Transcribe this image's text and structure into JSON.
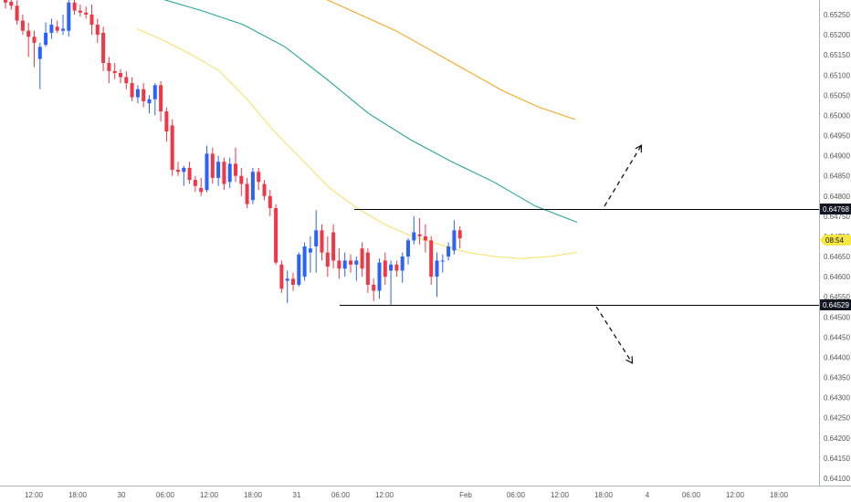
{
  "chart_data": {
    "type": "candlestick",
    "title": "",
    "xlabel": "",
    "ylabel": "",
    "x_ticks": [
      "12:00",
      "18:00",
      "30",
      "06:00",
      "12:00",
      "18:00",
      "31",
      "06:00",
      "12:00",
      "Feb",
      "06:00",
      "12:00",
      "18:00",
      "4",
      "06:00",
      "12:00",
      "18:00"
    ],
    "y_ticks": [
      "0.65250",
      "0.65200",
      "0.65150",
      "0.65100",
      "0.65050",
      "0.65000",
      "0.64950",
      "0.64900",
      "0.64850",
      "0.64800",
      "0.64750",
      "0.64700",
      "0.64650",
      "0.64600",
      "0.64550",
      "0.64500",
      "0.64450",
      "0.64400",
      "0.64350",
      "0.64300",
      "0.64250",
      "0.64200",
      "0.64150",
      "0.64100"
    ],
    "ylim": [
      0.6408,
      0.6529
    ],
    "grid": false,
    "colors": {
      "up": "#2962ff",
      "down": "#f23645",
      "ma_fast": "#f5e26b",
      "ma_mid": "#26a69a",
      "ma_slow": "#f5a623",
      "level": "#000000",
      "price_badge": "#f7e742"
    },
    "candles": [
      {
        "o": 0.6529,
        "h": 0.65305,
        "l": 0.65265,
        "c": 0.6528
      },
      {
        "o": 0.65282,
        "h": 0.653,
        "l": 0.65262,
        "c": 0.65272
      },
      {
        "o": 0.65272,
        "h": 0.65285,
        "l": 0.65225,
        "c": 0.65235
      },
      {
        "o": 0.65235,
        "h": 0.6525,
        "l": 0.652,
        "c": 0.6521
      },
      {
        "o": 0.6521,
        "h": 0.6523,
        "l": 0.65145,
        "c": 0.65195
      },
      {
        "o": 0.65195,
        "h": 0.6521,
        "l": 0.6512,
        "c": 0.6518
      },
      {
        "o": 0.6514,
        "h": 0.6518,
        "l": 0.65065,
        "c": 0.6517
      },
      {
        "o": 0.65175,
        "h": 0.6523,
        "l": 0.6517,
        "c": 0.65205
      },
      {
        "o": 0.65205,
        "h": 0.6524,
        "l": 0.6519,
        "c": 0.65225
      },
      {
        "o": 0.6522,
        "h": 0.65235,
        "l": 0.65205,
        "c": 0.6521
      },
      {
        "o": 0.6521,
        "h": 0.6525,
        "l": 0.652,
        "c": 0.65215
      },
      {
        "o": 0.6521,
        "h": 0.653,
        "l": 0.65195,
        "c": 0.6528
      },
      {
        "o": 0.6528,
        "h": 0.65305,
        "l": 0.6525,
        "c": 0.6526
      },
      {
        "o": 0.6526,
        "h": 0.65275,
        "l": 0.65245,
        "c": 0.65255
      },
      {
        "o": 0.65255,
        "h": 0.6527,
        "l": 0.6524,
        "c": 0.6525
      },
      {
        "o": 0.6525,
        "h": 0.65275,
        "l": 0.652,
        "c": 0.65225
      },
      {
        "o": 0.65225,
        "h": 0.6524,
        "l": 0.6518,
        "c": 0.652
      },
      {
        "o": 0.65205,
        "h": 0.6522,
        "l": 0.6511,
        "c": 0.6513
      },
      {
        "o": 0.6513,
        "h": 0.65145,
        "l": 0.6508,
        "c": 0.6511
      },
      {
        "o": 0.6511,
        "h": 0.6513,
        "l": 0.6509,
        "c": 0.65105
      },
      {
        "o": 0.65105,
        "h": 0.65115,
        "l": 0.6508,
        "c": 0.65095
      },
      {
        "o": 0.65095,
        "h": 0.6511,
        "l": 0.65065,
        "c": 0.6508
      },
      {
        "o": 0.6508,
        "h": 0.65095,
        "l": 0.65035,
        "c": 0.65045
      },
      {
        "o": 0.65045,
        "h": 0.65075,
        "l": 0.6503,
        "c": 0.65065
      },
      {
        "o": 0.65065,
        "h": 0.6508,
        "l": 0.6502,
        "c": 0.65035
      },
      {
        "o": 0.6503,
        "h": 0.6505,
        "l": 0.65005,
        "c": 0.6504
      },
      {
        "o": 0.6504,
        "h": 0.6508,
        "l": 0.65,
        "c": 0.65075
      },
      {
        "o": 0.65075,
        "h": 0.65085,
        "l": 0.64985,
        "c": 0.6501
      },
      {
        "o": 0.6501,
        "h": 0.6502,
        "l": 0.64935,
        "c": 0.6496
      },
      {
        "o": 0.64975,
        "h": 0.6499,
        "l": 0.6485,
        "c": 0.64865
      },
      {
        "o": 0.64865,
        "h": 0.64885,
        "l": 0.6485,
        "c": 0.6486
      },
      {
        "o": 0.6486,
        "h": 0.64875,
        "l": 0.64825,
        "c": 0.6487
      },
      {
        "o": 0.6487,
        "h": 0.64885,
        "l": 0.6483,
        "c": 0.6484
      },
      {
        "o": 0.6484,
        "h": 0.6485,
        "l": 0.6481,
        "c": 0.64825
      },
      {
        "o": 0.6482,
        "h": 0.64845,
        "l": 0.648,
        "c": 0.6481
      },
      {
        "o": 0.64815,
        "h": 0.64925,
        "l": 0.6481,
        "c": 0.64905
      },
      {
        "o": 0.64905,
        "h": 0.6492,
        "l": 0.6483,
        "c": 0.64845
      },
      {
        "o": 0.64845,
        "h": 0.649,
        "l": 0.64825,
        "c": 0.64885
      },
      {
        "o": 0.64885,
        "h": 0.64895,
        "l": 0.64815,
        "c": 0.6483
      },
      {
        "o": 0.64835,
        "h": 0.64895,
        "l": 0.6482,
        "c": 0.6488
      },
      {
        "o": 0.6488,
        "h": 0.6492,
        "l": 0.64835,
        "c": 0.6485
      },
      {
        "o": 0.6485,
        "h": 0.6487,
        "l": 0.648,
        "c": 0.6483
      },
      {
        "o": 0.6483,
        "h": 0.64845,
        "l": 0.6477,
        "c": 0.6478
      },
      {
        "o": 0.6479,
        "h": 0.6487,
        "l": 0.6478,
        "c": 0.6486
      },
      {
        "o": 0.6486,
        "h": 0.6487,
        "l": 0.64815,
        "c": 0.64835
      },
      {
        "o": 0.6483,
        "h": 0.6484,
        "l": 0.6479,
        "c": 0.648
      },
      {
        "o": 0.648,
        "h": 0.64815,
        "l": 0.6475,
        "c": 0.6477
      },
      {
        "o": 0.6477,
        "h": 0.6478,
        "l": 0.6463,
        "c": 0.64635
      },
      {
        "o": 0.6463,
        "h": 0.6464,
        "l": 0.6456,
        "c": 0.6457
      },
      {
        "o": 0.6459,
        "h": 0.64615,
        "l": 0.64535,
        "c": 0.64595
      },
      {
        "o": 0.64595,
        "h": 0.6461,
        "l": 0.64565,
        "c": 0.6458
      },
      {
        "o": 0.6458,
        "h": 0.6466,
        "l": 0.64575,
        "c": 0.64655
      },
      {
        "o": 0.646,
        "h": 0.64685,
        "l": 0.6459,
        "c": 0.64675
      },
      {
        "o": 0.6466,
        "h": 0.647,
        "l": 0.6461,
        "c": 0.6467
      },
      {
        "o": 0.64675,
        "h": 0.64765,
        "l": 0.6461,
        "c": 0.64715
      },
      {
        "o": 0.64715,
        "h": 0.6473,
        "l": 0.6464,
        "c": 0.6466
      },
      {
        "o": 0.6466,
        "h": 0.647,
        "l": 0.646,
        "c": 0.64625
      },
      {
        "o": 0.6471,
        "h": 0.6473,
        "l": 0.6462,
        "c": 0.6464
      },
      {
        "o": 0.6464,
        "h": 0.6467,
        "l": 0.64595,
        "c": 0.6462
      },
      {
        "o": 0.6462,
        "h": 0.6466,
        "l": 0.646,
        "c": 0.6464
      },
      {
        "o": 0.6464,
        "h": 0.64655,
        "l": 0.6461,
        "c": 0.6463
      },
      {
        "o": 0.6463,
        "h": 0.6465,
        "l": 0.6459,
        "c": 0.6464
      },
      {
        "o": 0.6467,
        "h": 0.64685,
        "l": 0.646,
        "c": 0.6462
      },
      {
        "o": 0.6466,
        "h": 0.6467,
        "l": 0.6456,
        "c": 0.6458
      },
      {
        "o": 0.6458,
        "h": 0.64595,
        "l": 0.6454,
        "c": 0.64565
      },
      {
        "o": 0.64565,
        "h": 0.64645,
        "l": 0.64545,
        "c": 0.64635
      },
      {
        "o": 0.6464,
        "h": 0.6466,
        "l": 0.6458,
        "c": 0.646
      },
      {
        "o": 0.64615,
        "h": 0.6464,
        "l": 0.6453,
        "c": 0.6463
      },
      {
        "o": 0.6463,
        "h": 0.6464,
        "l": 0.646,
        "c": 0.64615
      },
      {
        "o": 0.64615,
        "h": 0.6466,
        "l": 0.64585,
        "c": 0.6465
      },
      {
        "o": 0.6465,
        "h": 0.64695,
        "l": 0.6463,
        "c": 0.6469
      },
      {
        "o": 0.6469,
        "h": 0.6475,
        "l": 0.6468,
        "c": 0.6471
      },
      {
        "o": 0.64705,
        "h": 0.64745,
        "l": 0.6468,
        "c": 0.647
      },
      {
        "o": 0.647,
        "h": 0.6473,
        "l": 0.6466,
        "c": 0.6469
      },
      {
        "o": 0.6469,
        "h": 0.647,
        "l": 0.6458,
        "c": 0.646
      },
      {
        "o": 0.646,
        "h": 0.6466,
        "l": 0.6455,
        "c": 0.6464
      },
      {
        "o": 0.6464,
        "h": 0.64655,
        "l": 0.6461,
        "c": 0.6464
      },
      {
        "o": 0.6465,
        "h": 0.64685,
        "l": 0.6464,
        "c": 0.64675
      },
      {
        "o": 0.64665,
        "h": 0.6474,
        "l": 0.64655,
        "c": 0.64715
      },
      {
        "o": 0.64715,
        "h": 0.64725,
        "l": 0.6467,
        "c": 0.64695
      }
    ],
    "ma_fast": [
      0.65215,
      0.65185,
      0.6515,
      0.6511,
      0.6504,
      0.6496,
      0.6489,
      0.6482,
      0.6477,
      0.6473,
      0.647,
      0.6468,
      0.6466,
      0.6465,
      0.64645,
      0.6465,
      0.6466
    ],
    "ma_mid": [
      0.6529,
      0.6526,
      0.65225,
      0.6517,
      0.6509,
      0.65005,
      0.6494,
      0.64885,
      0.64835,
      0.64775,
      0.64735
    ],
    "ma_slow": [
      0.6529,
      0.6525,
      0.6521,
      0.6516,
      0.6511,
      0.6506,
      0.6502,
      0.6499
    ],
    "levels": [
      0.64768,
      0.64529
    ],
    "level_labels": [
      "0.64768",
      "0.64529"
    ],
    "last_price": 0.6469,
    "countdown": "08:54",
    "annotations": [
      "breakout-up-arrow",
      "breakout-down-arrow"
    ]
  }
}
